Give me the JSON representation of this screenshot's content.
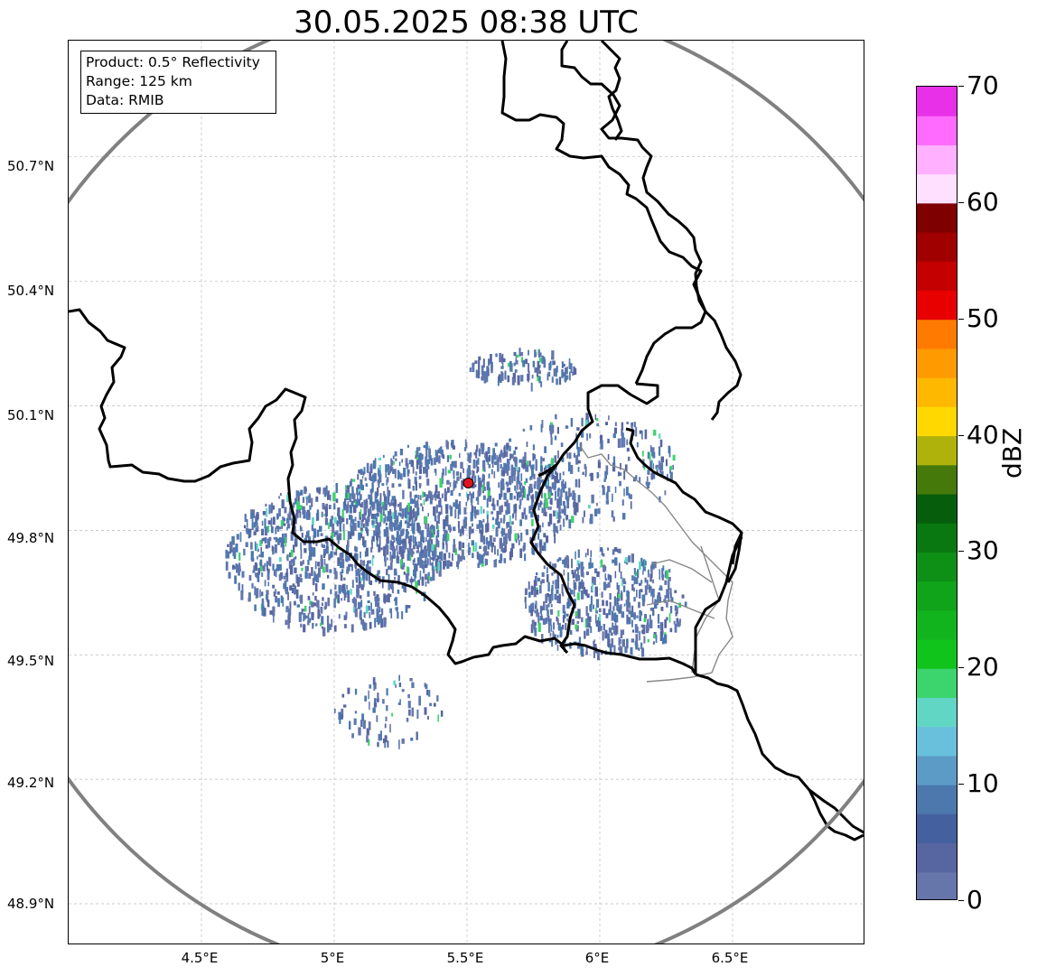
{
  "title": "30.05.2025 08:38 UTC",
  "info": {
    "product": "Product: 0.5° Reflectivity",
    "range": "Range: 125 km",
    "data": "Data: RMIB"
  },
  "map": {
    "lat_labels": [
      "50.7°N",
      "50.4°N",
      "50.1°N",
      "49.8°N",
      "49.5°N",
      "49.2°N",
      "48.9°N"
    ],
    "lon_labels": [
      "4.5°E",
      "5°E",
      "5.5°E",
      "6°E",
      "6.5°E"
    ],
    "lat_range": [
      48.8,
      50.98
    ],
    "lon_range": [
      4.0,
      7.0
    ],
    "radar_site": {
      "lon": 5.505,
      "lat": 49.914
    },
    "range_km": 125,
    "colors": {
      "border": "#000000",
      "subregion": "#888888",
      "range_ring": "#808080",
      "grid": "#bbbbbb",
      "site_marker": "#e0141e"
    }
  },
  "colorbar": {
    "label": "dBZ",
    "ticks": [
      "0",
      "10",
      "20",
      "30",
      "40",
      "50",
      "60",
      "70"
    ],
    "min": 0,
    "max": 70,
    "step": 2.5,
    "colors": [
      "#6675aa",
      "#5765a0",
      "#44609f",
      "#4c78ae",
      "#5b9bc6",
      "#68c0dc",
      "#62d6c5",
      "#3cd46c",
      "#10c41c",
      "#12b41e",
      "#10a41a",
      "#0e9016",
      "#0a7810",
      "#065e0c",
      "#457a0a",
      "#b0b20c",
      "#ffd800",
      "#ffb800",
      "#ff9a00",
      "#ff7a00",
      "#e80000",
      "#c40000",
      "#a00000",
      "#7e0000",
      "#ffe0ff",
      "#ffb0ff",
      "#ff6aff",
      "#e830e8"
    ]
  }
}
